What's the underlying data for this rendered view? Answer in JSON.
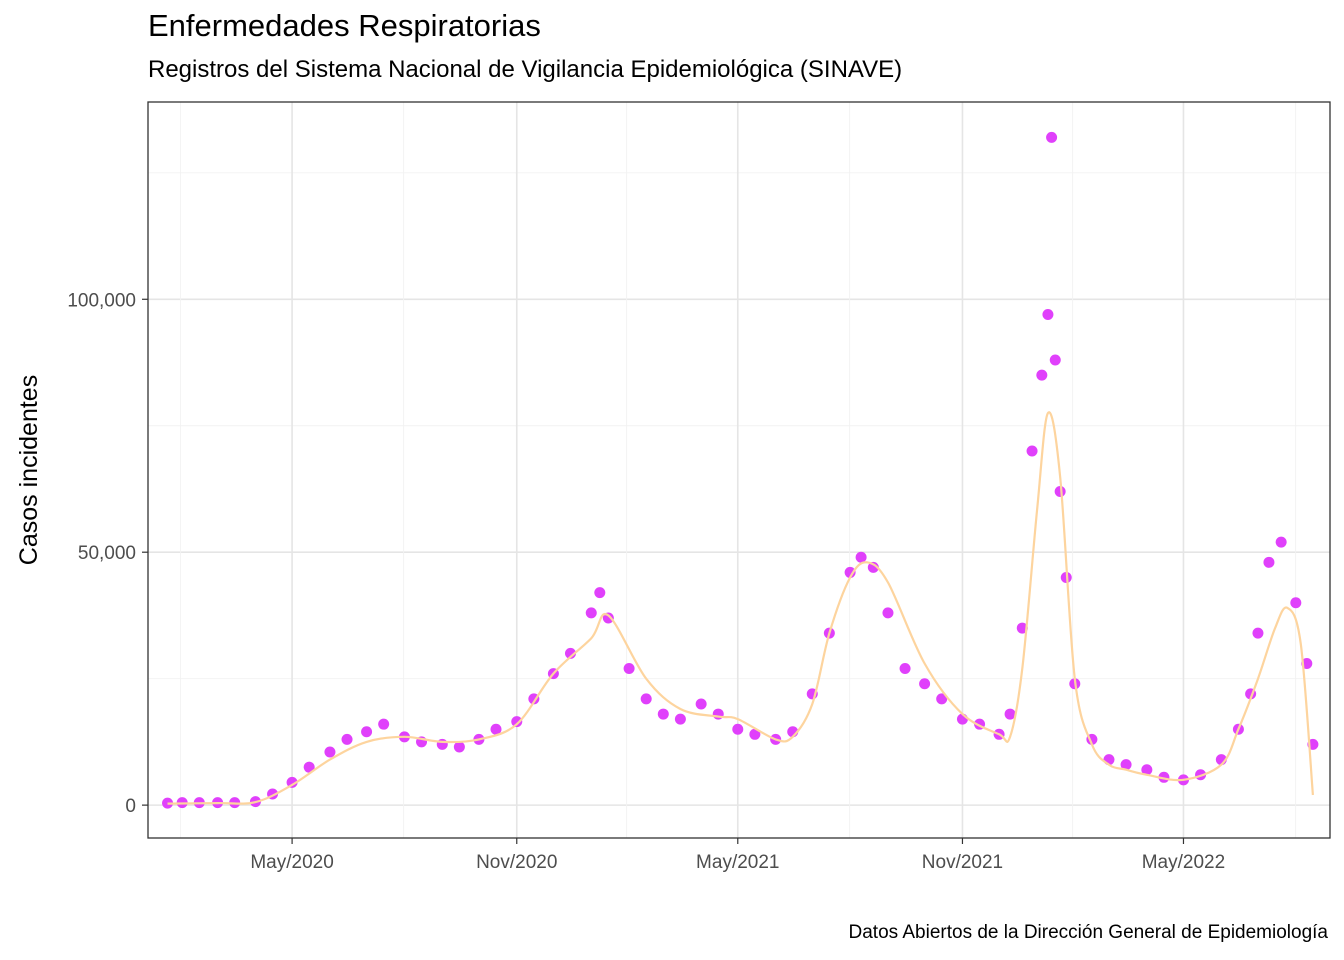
{
  "chart_data": {
    "type": "scatter",
    "title": "Enfermedades Respiratorias",
    "subtitle": "Registros del Sistema Nacional de Vigilancia Epidemiológica (SINAVE)",
    "caption": "Datos Abiertos de la Dirección General de Epidemiología",
    "xlabel": "",
    "ylabel": "Casos incidentes",
    "x_ticks": [
      {
        "date": "2020-05-01",
        "label": "May/2020"
      },
      {
        "date": "2020-11-01",
        "label": "Nov/2020"
      },
      {
        "date": "2021-05-01",
        "label": "May/2021"
      },
      {
        "date": "2021-11-01",
        "label": "Nov/2021"
      },
      {
        "date": "2022-05-01",
        "label": "May/2022"
      }
    ],
    "y_ticks": [
      {
        "value": 0,
        "label": "0"
      },
      {
        "value": 50000,
        "label": "50,000"
      },
      {
        "value": 100000,
        "label": "100,000"
      }
    ],
    "xlim": [
      "2020-01-04",
      "2022-08-29"
    ],
    "ylim": [
      -6500,
      139000
    ],
    "grid": true,
    "colors": {
      "points": "#e040fb",
      "smooth": "#fdd49e",
      "panel_border": "#333333",
      "grid_major": "#e5e5e5",
      "grid_minor": "#f2f2f2"
    },
    "series": [
      {
        "kind": "points",
        "x": [
          "2020-01-20",
          "2020-02-01",
          "2020-02-15",
          "2020-03-01",
          "2020-03-15",
          "2020-04-01",
          "2020-04-15",
          "2020-05-01",
          "2020-05-15",
          "2020-06-01",
          "2020-06-15",
          "2020-07-01",
          "2020-07-15",
          "2020-08-01",
          "2020-08-15",
          "2020-09-01",
          "2020-09-15",
          "2020-10-01",
          "2020-10-15",
          "2020-11-01",
          "2020-11-15",
          "2020-12-01",
          "2020-12-15",
          "2021-01-01",
          "2021-01-08",
          "2021-01-15",
          "2021-02-01",
          "2021-02-15",
          "2021-03-01",
          "2021-03-15",
          "2021-04-01",
          "2021-04-15",
          "2021-05-01",
          "2021-05-15",
          "2021-06-01",
          "2021-06-15",
          "2021-07-01",
          "2021-07-15",
          "2021-08-01",
          "2021-08-10",
          "2021-08-20",
          "2021-09-01",
          "2021-09-15",
          "2021-10-01",
          "2021-10-15",
          "2021-11-01",
          "2021-11-15",
          "2021-12-01",
          "2021-12-10",
          "2021-12-20",
          "2021-12-28",
          "2022-01-05",
          "2022-01-10",
          "2022-01-13",
          "2022-01-16",
          "2022-01-20",
          "2022-01-25",
          "2022-02-01",
          "2022-02-15",
          "2022-03-01",
          "2022-03-15",
          "2022-04-01",
          "2022-04-15",
          "2022-05-01",
          "2022-05-15",
          "2022-06-01",
          "2022-06-15",
          "2022-06-25",
          "2022-07-01",
          "2022-07-10",
          "2022-07-20",
          "2022-08-01",
          "2022-08-10",
          "2022-08-15"
        ],
        "y": [
          400,
          500,
          500,
          500,
          500,
          700,
          2200,
          4500,
          7500,
          10500,
          13000,
          14500,
          16000,
          13500,
          12500,
          12000,
          11500,
          13000,
          15000,
          16500,
          21000,
          26000,
          30000,
          38000,
          42000,
          37000,
          27000,
          21000,
          18000,
          17000,
          20000,
          18000,
          15000,
          14000,
          13000,
          14500,
          22000,
          34000,
          46000,
          49000,
          47000,
          38000,
          27000,
          24000,
          21000,
          17000,
          16000,
          14000,
          18000,
          35000,
          70000,
          85000,
          97000,
          132000,
          88000,
          62000,
          45000,
          24000,
          13000,
          9000,
          8000,
          7000,
          5500,
          5000,
          6000,
          9000,
          15000,
          22000,
          34000,
          48000,
          52000,
          40000,
          28000,
          12000
        ]
      },
      {
        "kind": "smooth",
        "x": [
          "2020-01-20",
          "2020-03-01",
          "2020-04-01",
          "2020-05-01",
          "2020-06-01",
          "2020-07-01",
          "2020-08-01",
          "2020-09-01",
          "2020-10-01",
          "2020-11-01",
          "2020-12-01",
          "2021-01-01",
          "2021-01-15",
          "2021-02-15",
          "2021-03-15",
          "2021-04-15",
          "2021-05-01",
          "2021-06-01",
          "2021-06-15",
          "2021-07-01",
          "2021-07-15",
          "2021-08-01",
          "2021-08-15",
          "2021-09-01",
          "2021-10-01",
          "2021-11-01",
          "2021-12-01",
          "2021-12-10",
          "2021-12-20",
          "2022-01-01",
          "2022-01-10",
          "2022-01-20",
          "2022-02-01",
          "2022-02-15",
          "2022-03-01",
          "2022-03-15",
          "2022-04-01",
          "2022-05-01",
          "2022-06-01",
          "2022-06-15",
          "2022-07-01",
          "2022-07-15",
          "2022-07-25",
          "2022-08-05",
          "2022-08-15"
        ],
        "y": [
          300,
          400,
          600,
          4000,
          9000,
          12500,
          13500,
          12500,
          13000,
          16000,
          26000,
          33000,
          37500,
          25000,
          19000,
          17500,
          17000,
          13000,
          13500,
          20000,
          34000,
          45000,
          48000,
          44000,
          28000,
          18000,
          14000,
          13500,
          27000,
          58000,
          77500,
          65000,
          25000,
          12000,
          8000,
          7000,
          6000,
          5000,
          8000,
          15000,
          25000,
          35000,
          39000,
          32000,
          2000
        ]
      }
    ]
  }
}
